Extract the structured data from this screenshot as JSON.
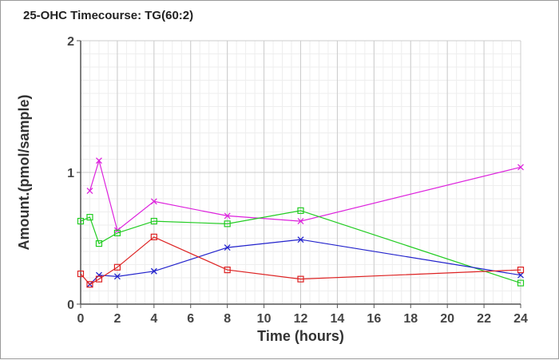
{
  "chart_data": {
    "type": "line",
    "title": "25-OHC Timecourse: TG(60:2)",
    "xlabel": "Time (hours)",
    "ylabel": "Amount.(pmol/sample)",
    "xlim": [
      0,
      24
    ],
    "ylim": [
      0,
      2
    ],
    "xticks": [
      0,
      2,
      4,
      6,
      8,
      10,
      12,
      14,
      16,
      18,
      20,
      22,
      24
    ],
    "yticks": [
      0,
      1,
      2
    ],
    "grid": true,
    "legend": "none",
    "series": [
      {
        "color": "#dd22dd",
        "marker": "x",
        "x": [
          0.5,
          1,
          2,
          4,
          8,
          12,
          24
        ],
        "y": [
          0.86,
          1.09,
          0.56,
          0.78,
          0.67,
          0.63,
          1.04
        ]
      },
      {
        "color": "#22cc22",
        "marker": "square",
        "x": [
          0,
          0.5,
          1,
          2,
          4,
          8,
          12,
          24
        ],
        "y": [
          0.63,
          0.66,
          0.46,
          0.54,
          0.63,
          0.61,
          0.71,
          0.16
        ]
      },
      {
        "color": "#2222cc",
        "marker": "x",
        "x": [
          0.5,
          1,
          2,
          4,
          8,
          12,
          24
        ],
        "y": [
          0.15,
          0.22,
          0.21,
          0.25,
          0.43,
          0.49,
          0.22
        ]
      },
      {
        "color": "#dd2222",
        "marker": "square",
        "x": [
          0,
          0.5,
          1,
          2,
          4,
          8,
          12,
          24
        ],
        "y": [
          0.23,
          0.15,
          0.19,
          0.28,
          0.51,
          0.26,
          0.19,
          0.26
        ]
      }
    ]
  }
}
